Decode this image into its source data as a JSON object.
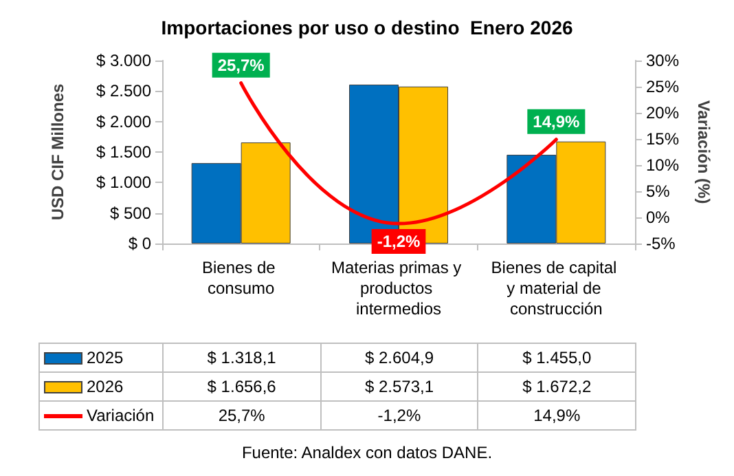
{
  "chart_data": {
    "type": "bar",
    "title": "Importaciones por uso o destino  Enero 2026",
    "ylabel": "USD CIF Millones",
    "y2label": "Variación (%)",
    "categories": [
      "Bienes de consumo",
      "Materias primas y productos intermedios",
      "Bienes de capital y material de construcción"
    ],
    "series": [
      {
        "name": "2025",
        "color": "#0070c0",
        "values": [
          1318.1,
          2604.9,
          1455.0
        ],
        "value_labels": [
          "$ 1.318,1",
          "$ 2.604,9",
          "$ 1.455,0"
        ]
      },
      {
        "name": "2026",
        "color": "#ffc000",
        "values": [
          1656.6,
          2573.1,
          1672.2
        ],
        "value_labels": [
          "$ 1.656,6",
          "$ 2.573,1",
          "$ 1.672,2"
        ]
      },
      {
        "name": "Variación",
        "type": "line",
        "axis": "y2",
        "color": "#ff0000",
        "values": [
          25.7,
          -1.2,
          14.9
        ],
        "value_labels": [
          "25,7%",
          "-1,2%",
          "14,9%"
        ]
      }
    ],
    "ylim": [
      0,
      3000
    ],
    "yticks": [
      {
        "value": 0,
        "label": "$ 0"
      },
      {
        "value": 500,
        "label": "$ 500"
      },
      {
        "value": 1000,
        "label": "$ 1.000"
      },
      {
        "value": 1500,
        "label": "$ 1.500"
      },
      {
        "value": 2000,
        "label": "$ 2.000"
      },
      {
        "value": 2500,
        "label": "$ 2.500"
      },
      {
        "value": 3000,
        "label": "$ 3.000"
      }
    ],
    "y2lim": [
      -5,
      30
    ],
    "y2ticks": [
      {
        "value": -5,
        "label": "-5%"
      },
      {
        "value": 0,
        "label": "0%"
      },
      {
        "value": 5,
        "label": "5%"
      },
      {
        "value": 10,
        "label": "10%"
      },
      {
        "value": 15,
        "label": "15%"
      },
      {
        "value": 20,
        "label": "20%"
      },
      {
        "value": 25,
        "label": "25%"
      },
      {
        "value": 30,
        "label": "30%"
      }
    ],
    "grid": false,
    "legend": "bottom",
    "marker": "none",
    "line_style": "solid",
    "annotations": [
      "Fuente: Analdex con datos DANE."
    ]
  }
}
